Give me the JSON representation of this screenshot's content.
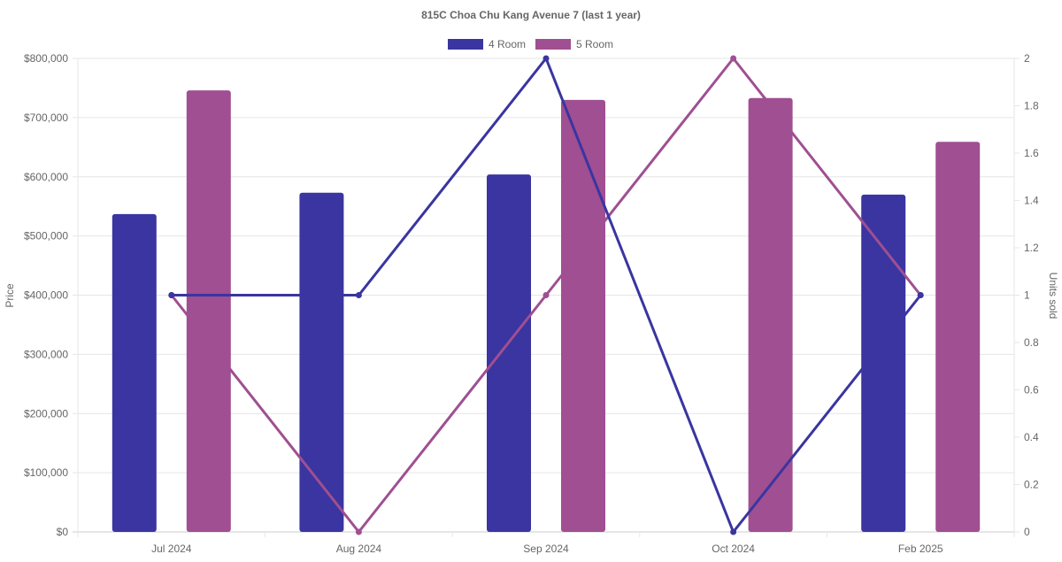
{
  "chart_data": {
    "type": "bar",
    "title": "815C Choa Chu Kang Avenue 7 (last 1 year)",
    "categories": [
      "Jul 2024",
      "Aug 2024",
      "Sep 2024",
      "Oct 2024",
      "Feb 2025"
    ],
    "ylabel": "Price",
    "y2label": "Units sold",
    "ylim": [
      0,
      800000
    ],
    "y2lim": [
      0,
      2
    ],
    "yticks": [
      "$0",
      "$100,000",
      "$200,000",
      "$300,000",
      "$400,000",
      "$500,000",
      "$600,000",
      "$700,000",
      "$800,000"
    ],
    "y2ticks": [
      "0",
      "0.2",
      "0.4",
      "0.6",
      "0.8",
      "1",
      "1.2",
      "1.4",
      "1.6",
      "1.8",
      "2"
    ],
    "legend_position": "top",
    "grid": true,
    "series": [
      {
        "name": "4 Room",
        "color": "#3a35a0",
        "price": [
          537000,
          573000,
          604000,
          null,
          570000
        ],
        "units": [
          1,
          1,
          2,
          0,
          1
        ]
      },
      {
        "name": "5 Room",
        "color": "#9f4f92",
        "price": [
          746000,
          null,
          730000,
          733000,
          659000
        ],
        "units": [
          1,
          0,
          1,
          2,
          1
        ]
      }
    ]
  }
}
